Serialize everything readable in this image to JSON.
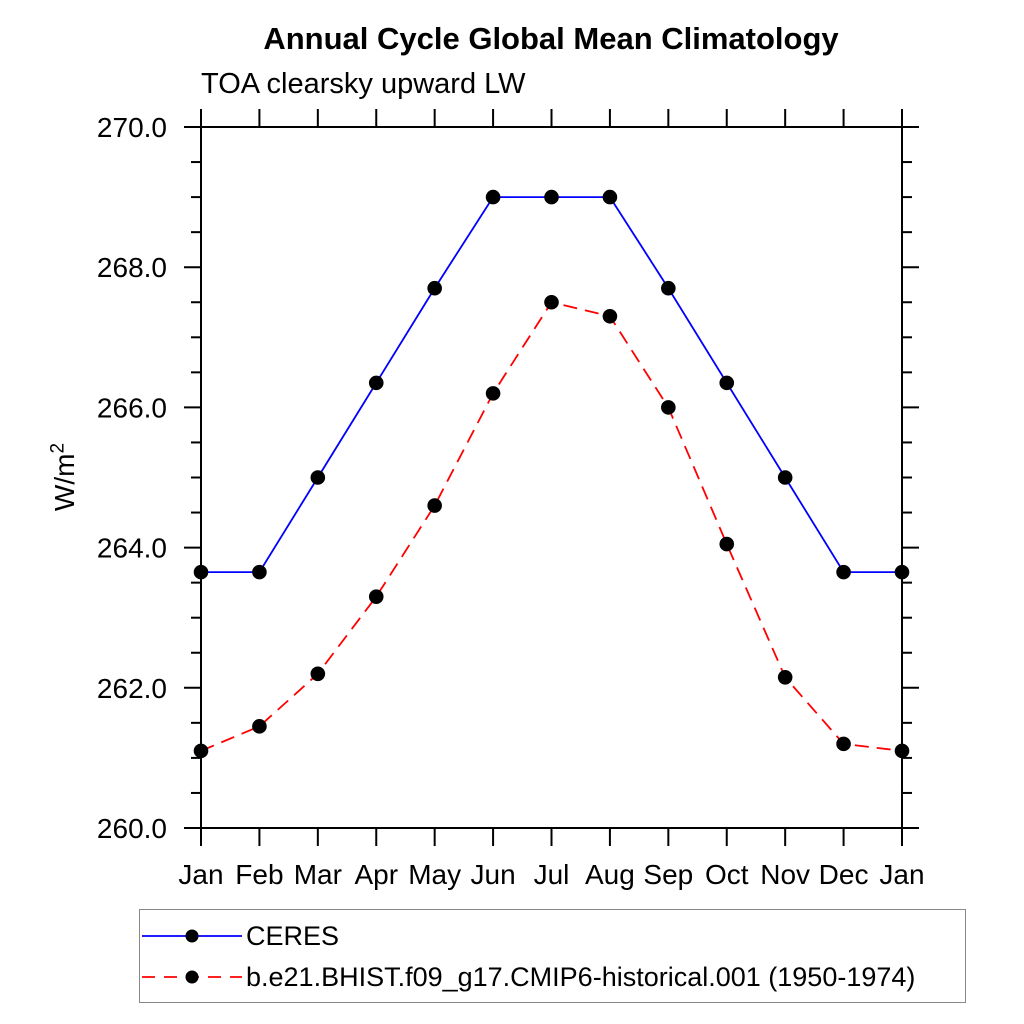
{
  "header": {
    "title": "Annual Cycle Global Mean Climatology",
    "subtitle": "TOA clearsky upward LW"
  },
  "y_axis": {
    "label": "W/m",
    "label_superscript": "2",
    "tick_labels": [
      "270.0",
      "268.0",
      "266.0",
      "264.0",
      "262.0",
      "260.0"
    ]
  },
  "x_axis": {
    "tick_labels": [
      "Jan",
      "Feb",
      "Mar",
      "Apr",
      "May",
      "Jun",
      "Jul",
      "Aug",
      "Sep",
      "Oct",
      "Nov",
      "Dec",
      "Jan"
    ]
  },
  "legend": {
    "items": [
      {
        "label": "CERES",
        "color": "#0000ff",
        "line_style": "solid",
        "marker_color": "#000000"
      },
      {
        "label": "b.e21.BHIST.f09_g17.CMIP6-historical.001 (1950-1974)",
        "color": "#ff0000",
        "line_style": "dashed",
        "marker_color": "#000000"
      }
    ]
  },
  "chart_data": {
    "type": "line",
    "title": "Annual Cycle Global Mean Climatology",
    "subtitle": "TOA clearsky upward LW",
    "ylabel": "W/m^2",
    "xlabel": "",
    "categories": [
      "Jan",
      "Feb",
      "Mar",
      "Apr",
      "May",
      "Jun",
      "Jul",
      "Aug",
      "Sep",
      "Oct",
      "Nov",
      "Dec",
      "Jan"
    ],
    "series": [
      {
        "name": "CERES",
        "color": "#0000ff",
        "line_style": "solid",
        "marker": "filled-circle",
        "marker_color": "#000000",
        "values": [
          263.65,
          263.65,
          265.0,
          266.35,
          267.7,
          269.0,
          269.0,
          269.0,
          267.7,
          266.35,
          265.0,
          263.65,
          263.65
        ]
      },
      {
        "name": "b.e21.BHIST.f09_g17.CMIP6-historical.001 (1950-1974)",
        "color": "#ff0000",
        "line_style": "dashed",
        "marker": "filled-circle",
        "marker_color": "#000000",
        "values": [
          261.1,
          261.45,
          262.2,
          263.3,
          264.6,
          266.2,
          267.5,
          267.3,
          266.0,
          264.05,
          262.15,
          261.2,
          261.1
        ]
      }
    ],
    "ylim": [
      260.0,
      270.0
    ],
    "ytick_major_interval": 2.0,
    "ytick_minor_interval": 0.5,
    "grid": false,
    "frame": "box-with-outward-ticks",
    "legend_position": "below-plot-left"
  }
}
